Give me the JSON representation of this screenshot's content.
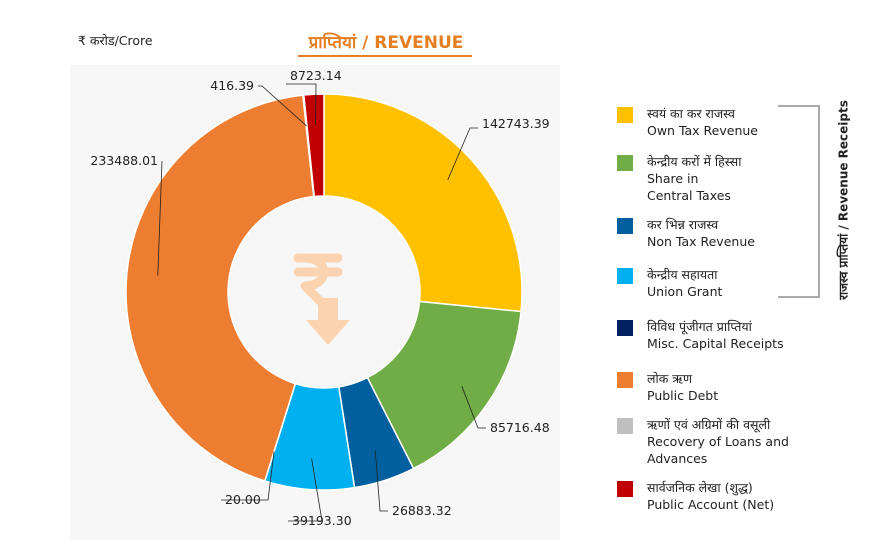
{
  "unit_label": "₹ करोड/Crore",
  "title": "प्राप्तियां / REVENUE",
  "side_label": "राजस्व प्राप्तियां / Revenue Receipts",
  "chart_data": {
    "type": "pie",
    "title": "प्राप्तियां / REVENUE",
    "unit": "₹ करोड/Crore",
    "series": [
      {
        "name": "स्वयं का कर राजस्व / Own Tax Revenue",
        "value": 142743.39,
        "color": "#FFC000"
      },
      {
        "name": "केन्द्रीय करों में हिस्सा / Share in Central Taxes",
        "value": 85716.48,
        "color": "#70AD47"
      },
      {
        "name": "कर भिन्न राजस्व / Non Tax Revenue",
        "value": 26883.32,
        "color": "#005F9E"
      },
      {
        "name": "केन्द्रीय सहायता / Union Grant",
        "value": 39193.3,
        "color": "#00B0F0"
      },
      {
        "name": "विविध पूंजीगत प्राप्तियां / Misc. Capital Receipts",
        "value": 20.0,
        "color": "#002060"
      },
      {
        "name": "लोक ऋण / Public Debt",
        "value": 233488.01,
        "color": "#ED7D31"
      },
      {
        "name": "ऋणों एवं अग्रिमों की वसूली / Recovery of Loans and Advances",
        "value": 416.39,
        "color": "#BFBFBF"
      },
      {
        "name": "सार्वजनिक लेखा (शुद्ध) / Public Account (Net)",
        "value": 8723.14,
        "color": "#C00000"
      }
    ],
    "data_labels": [
      "142743.39",
      "85716.48",
      "26883.32",
      "39193.30",
      "20.00",
      "233488.01",
      "416.39",
      "8723.14"
    ]
  },
  "legend": [
    {
      "line1": "स्वयं का कर राजस्व",
      "line2": "Own Tax Revenue",
      "line3": "",
      "color": "#FFC000"
    },
    {
      "line1": "केन्द्रीय करों में हिस्सा",
      "line2": "Share in",
      "line3": "Central Taxes",
      "color": "#70AD47"
    },
    {
      "line1": "कर भिन्न राजस्व",
      "line2": "Non Tax Revenue",
      "line3": "",
      "color": "#005F9E"
    },
    {
      "line1": "केन्द्रीय सहायता",
      "line2": "Union Grant",
      "line3": "",
      "color": "#00B0F0"
    },
    {
      "line1": "विविध पूंजीगत प्राप्तियां",
      "line2": "Misc. Capital Receipts",
      "line3": "",
      "color": "#002060"
    },
    {
      "line1": "लोक ऋण",
      "line2": "Public Debt",
      "line3": "",
      "color": "#ED7D31"
    },
    {
      "line1": "ऋणों एवं अग्रिमों की वसूली",
      "line2": "Recovery of Loans and",
      "line3": "Advances",
      "color": "#BFBFBF"
    },
    {
      "line1": "सार्वजनिक लेखा (शुद्ध)",
      "line2": "Public Account (Net)",
      "line3": "",
      "color": "#C00000"
    }
  ]
}
